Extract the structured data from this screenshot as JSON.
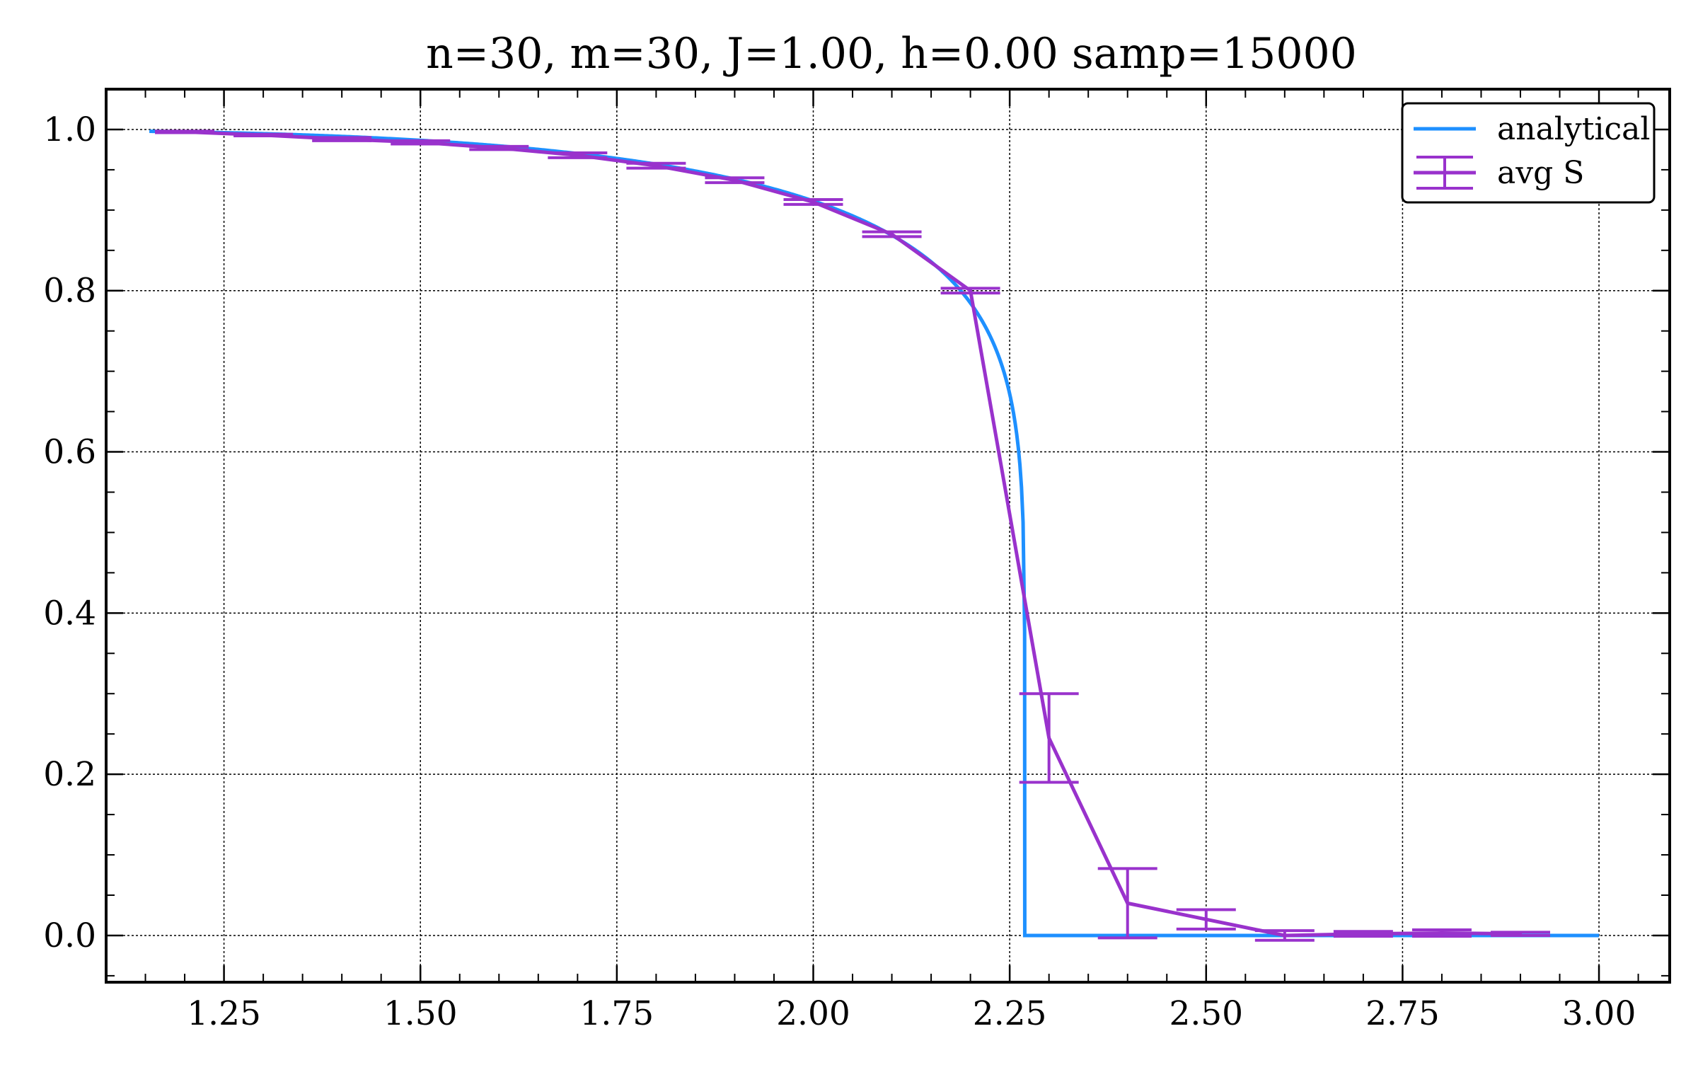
{
  "chart_data": {
    "type": "line",
    "title": "n=30, m=30, J=1.00, h=0.00 samp=15000",
    "xlabel": "",
    "ylabel": "",
    "xlim": [
      1.1,
      3.09
    ],
    "ylim": [
      -0.058,
      1.05
    ],
    "x_ticks": [
      1.25,
      1.5,
      1.75,
      2.0,
      2.25,
      2.5,
      2.75,
      3.0
    ],
    "x_tick_labels": [
      "1.25",
      "1.50",
      "1.75",
      "2.00",
      "2.25",
      "2.50",
      "2.75",
      "3.00"
    ],
    "y_ticks": [
      0.0,
      0.2,
      0.4,
      0.6,
      0.8,
      1.0
    ],
    "y_tick_labels": [
      "0.0",
      "0.2",
      "0.4",
      "0.6",
      "0.8",
      "1.0"
    ],
    "grid": true,
    "legend_position": "top-right",
    "series": [
      {
        "name": "analytical",
        "kind": "line",
        "color": "#1E90FF",
        "formula": "(1 - sinh(2J/T)^-4)^(1/8) for T < Tc = 2.269, else 0",
        "x_range": [
          1.155,
          3.0
        ]
      },
      {
        "name": "avg S",
        "kind": "errorbar",
        "color": "#9932CC",
        "x": [
          1.2,
          1.3,
          1.4,
          1.5,
          1.6,
          1.7,
          1.8,
          1.9,
          2.0,
          2.1,
          2.2,
          2.3,
          2.4,
          2.5,
          2.6,
          2.7,
          2.8,
          2.9
        ],
        "y": [
          0.997,
          0.993,
          0.988,
          0.984,
          0.977,
          0.968,
          0.955,
          0.937,
          0.91,
          0.87,
          0.8,
          0.245,
          0.04,
          0.02,
          0.0,
          0.002,
          0.003,
          0.002
        ],
        "yerr": [
          0.001,
          0.001,
          0.002,
          0.002,
          0.002,
          0.003,
          0.003,
          0.003,
          0.003,
          0.003,
          0.003,
          0.055,
          0.043,
          0.012,
          0.006,
          0.003,
          0.004,
          0.002
        ]
      }
    ]
  }
}
